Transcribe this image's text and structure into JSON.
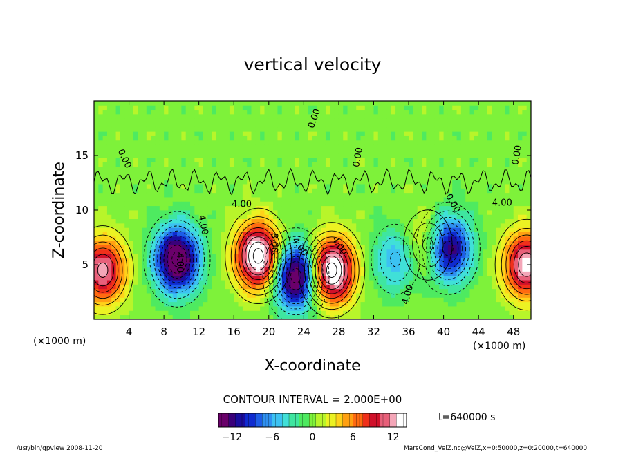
{
  "chart_data": {
    "type": "heatmap",
    "title": "vertical velocity",
    "xlabel": "X-coordinate",
    "ylabel": "Z-coordinate",
    "x_unit": "(×1000 m)",
    "x_unit_right": "(×1000 m)",
    "xlim": [
      0,
      50
    ],
    "ylim": [
      0,
      20
    ],
    "x_ticks": [
      4,
      8,
      12,
      16,
      20,
      24,
      28,
      32,
      36,
      40,
      44,
      48
    ],
    "y_ticks": [
      5,
      10,
      15
    ],
    "contour_labels": [
      {
        "text": "0.00",
        "x": 25.5,
        "z": 18.3,
        "rot": -70
      },
      {
        "text": "0.00",
        "x": 3.2,
        "z": 14.6,
        "rot": 65
      },
      {
        "text": "0.00",
        "x": 30.5,
        "z": 14.8,
        "rot": -80
      },
      {
        "text": "0.00",
        "x": 48.7,
        "z": 15.0,
        "rot": -80
      },
      {
        "text": "0.00",
        "x": 40.8,
        "z": 10.5,
        "rot": 60
      },
      {
        "text": "4.00",
        "x": 12.2,
        "z": 8.6,
        "rot": 80
      },
      {
        "text": "4.00",
        "x": 16.9,
        "z": 10.3,
        "rot": 0
      },
      {
        "text": "4.00",
        "x": 23.3,
        "z": 6.5,
        "rot": 55
      },
      {
        "text": "4.00",
        "x": 27.8,
        "z": 6.6,
        "rot": 60
      },
      {
        "text": "4.00",
        "x": 36.2,
        "z": 2.2,
        "rot": -75
      },
      {
        "text": "4.00",
        "x": 46.7,
        "z": 10.4,
        "rot": 0
      },
      {
        "text": "4.00",
        "x": 9.5,
        "z": 5.2,
        "rot": 90
      },
      {
        "text": "8.00",
        "x": 20.3,
        "z": 7.0,
        "rot": 90
      }
    ],
    "extrema": [
      {
        "x": 1.0,
        "z": 4.5,
        "sign": 1,
        "amp": 12
      },
      {
        "x": 9.5,
        "z": 5.5,
        "sign": -1,
        "amp": 16
      },
      {
        "x": 18.8,
        "z": 5.8,
        "sign": 1,
        "amp": 16
      },
      {
        "x": 23.1,
        "z": 4.0,
        "sign": -1,
        "amp": 16
      },
      {
        "x": 27.2,
        "z": 4.5,
        "sign": 1,
        "amp": 16
      },
      {
        "x": 34.5,
        "z": 5.5,
        "sign": -1,
        "amp": 6
      },
      {
        "x": 40.5,
        "z": 6.5,
        "sign": -1,
        "amp": 14
      },
      {
        "x": 38.2,
        "z": 6.8,
        "sign": 1,
        "amp": 6
      },
      {
        "x": 49.5,
        "z": 5.0,
        "sign": 1,
        "amp": 13
      }
    ],
    "contour_interval_label": "CONTOUR INTERVAL = 2.000E+00",
    "colorbar": {
      "min": -14,
      "max": 14,
      "ticks": [
        -12,
        -6,
        0,
        6,
        12
      ],
      "tick_labels": [
        "−12",
        "−6",
        "0",
        "6",
        "12"
      ],
      "colors": [
        "#6a006a",
        "#3a007a",
        "#1a0c9e",
        "#0f2bd0",
        "#1d5de8",
        "#2f90f0",
        "#3cc2f2",
        "#40e0d8",
        "#3fe6a0",
        "#4eea60",
        "#7ef23a",
        "#b8f52a",
        "#ecf223",
        "#ffd21a",
        "#ffa012",
        "#ff6a10",
        "#f0301a",
        "#d0102a",
        "#e8607a",
        "#f4a6b8",
        "#ffffff"
      ]
    }
  },
  "time_label": "t=640000 s",
  "footer_left": "/usr/bin/gpview  2008-11-20",
  "footer_right": "MarsCond_VelZ.nc@VelZ,x=0:50000,z=0:20000,t=640000"
}
